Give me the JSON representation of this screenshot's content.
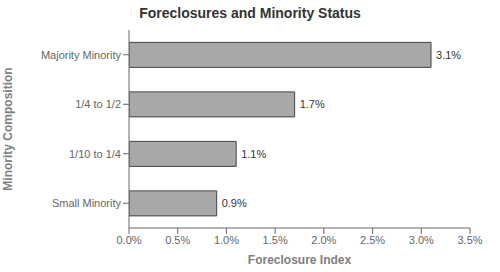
{
  "chart_data": {
    "type": "bar",
    "orientation": "horizontal",
    "title": "Foreclosures and Minority Status",
    "xlabel": "Foreclosure Index",
    "ylabel": "Minority Composition",
    "categories": [
      "Small Minority",
      "1/10 to 1/4",
      "1/4 to 1/2",
      "Majority Minority"
    ],
    "values": [
      0.009,
      0.011,
      0.017,
      0.031
    ],
    "value_labels": [
      "0.9%",
      "1.1%",
      "1.7%",
      "3.1%"
    ],
    "data_labels": true,
    "color": "#a8a8a8",
    "xlim": [
      0.0,
      0.035
    ],
    "xticks": [
      {
        "value": 0.0,
        "label": "0.0%"
      },
      {
        "value": 0.005,
        "label": "0.5%"
      },
      {
        "value": 0.01,
        "label": "1.0%"
      },
      {
        "value": 0.015,
        "label": "1.5%"
      },
      {
        "value": 0.02,
        "label": "2.0%"
      },
      {
        "value": 0.025,
        "label": "2.5%"
      },
      {
        "value": 0.03,
        "label": "3.0%"
      },
      {
        "value": 0.035,
        "label": "3.5%"
      }
    ]
  }
}
